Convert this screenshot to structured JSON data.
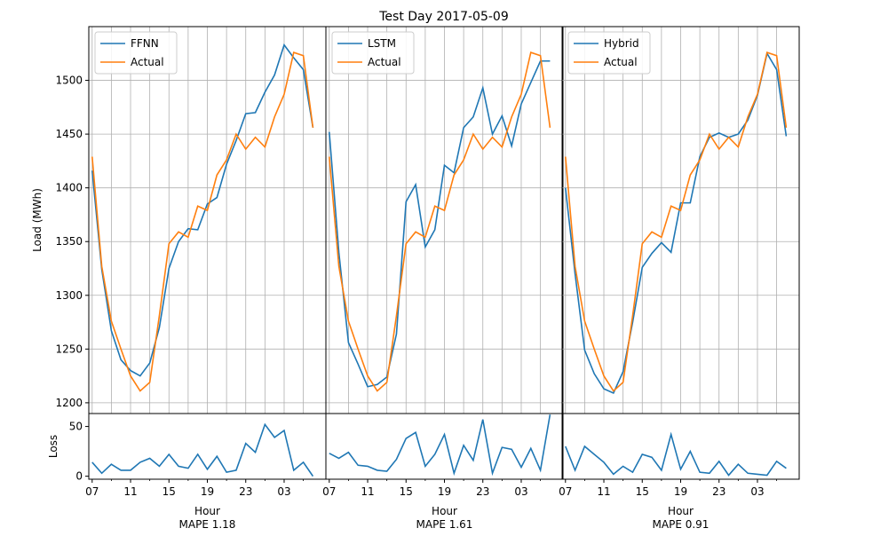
{
  "title": "Test Day 2017-05-09",
  "colors": {
    "model": "#1f77b4",
    "actual": "#ff7f0e",
    "grid": "#b0b0b0"
  },
  "ylabel_load": "Load (MWh)",
  "ylabel_loss": "Loss",
  "xlabel": "Hour",
  "x_tick_labels": [
    "07",
    "11",
    "15",
    "19",
    "23",
    "03"
  ],
  "chart_data": [
    {
      "type": "line",
      "legend": [
        "FFNN",
        "Actual"
      ],
      "mape_label": "MAPE 1.18",
      "x_hours": [
        7,
        8,
        9,
        10,
        11,
        12,
        13,
        14,
        15,
        16,
        17,
        18,
        19,
        20,
        21,
        22,
        23,
        24,
        25,
        26,
        27,
        28,
        29,
        30
      ],
      "series": [
        {
          "name": "FFNN",
          "values": [
            1416,
            1324,
            1267,
            1240,
            1230,
            1225,
            1237,
            1270,
            1325,
            1350,
            1362,
            1361,
            1385,
            1391,
            1422,
            1444,
            1469,
            1470,
            1489,
            1505,
            1533,
            1521,
            1510,
            1456
          ]
        },
        {
          "name": "Actual",
          "values": [
            1429,
            1327,
            1276,
            1250,
            1225,
            1211,
            1219,
            1281,
            1348,
            1359,
            1354,
            1383,
            1379,
            1412,
            1426,
            1450,
            1436,
            1447,
            1438,
            1466,
            1487,
            1526,
            1523,
            1456
          ]
        }
      ],
      "loss": [
        14,
        3,
        12,
        6,
        6,
        14,
        18,
        10,
        22,
        10,
        8,
        22,
        7,
        20,
        4,
        6,
        33,
        24,
        52,
        39,
        46,
        6,
        14,
        0
      ],
      "ylim": [
        1190,
        1550
      ],
      "loss_ylim": [
        -3,
        63
      ]
    },
    {
      "type": "line",
      "legend": [
        "LSTM",
        "Actual"
      ],
      "mape_label": "MAPE 1.61",
      "x_hours": [
        7,
        8,
        9,
        10,
        11,
        12,
        13,
        14,
        15,
        16,
        17,
        18,
        19,
        20,
        21,
        22,
        23,
        24,
        25,
        26,
        27,
        28,
        29,
        30
      ],
      "series": [
        {
          "name": "LSTM",
          "values": [
            1452,
            1340,
            1256,
            1236,
            1215,
            1217,
            1224,
            1264,
            1387,
            1403,
            1345,
            1361,
            1421,
            1414,
            1456,
            1466,
            1493,
            1450,
            1467,
            1439,
            1478,
            1498,
            1518,
            1518
          ]
        },
        {
          "name": "Actual",
          "values": [
            1429,
            1327,
            1276,
            1250,
            1225,
            1211,
            1219,
            1281,
            1348,
            1359,
            1354,
            1383,
            1379,
            1412,
            1426,
            1450,
            1436,
            1447,
            1438,
            1466,
            1487,
            1526,
            1523,
            1456
          ]
        }
      ],
      "loss": [
        23,
        18,
        24,
        11,
        10,
        6,
        5,
        17,
        38,
        44,
        10,
        22,
        42,
        3,
        31,
        16,
        57,
        3,
        29,
        27,
        9,
        28,
        6,
        62
      ],
      "ylim": [
        1190,
        1550
      ],
      "loss_ylim": [
        -3,
        63
      ]
    },
    {
      "type": "line",
      "legend": [
        "Hybrid",
        "Actual"
      ],
      "mape_label": "MAPE 0.91",
      "x_hours": [
        7,
        8,
        9,
        10,
        11,
        12,
        13,
        14,
        15,
        16,
        17,
        18,
        19,
        20,
        21,
        22,
        23,
        24,
        25,
        26,
        27,
        28,
        29,
        30
      ],
      "series": [
        {
          "name": "Hybrid",
          "values": [
            1400,
            1320,
            1249,
            1227,
            1213,
            1209,
            1229,
            1275,
            1326,
            1339,
            1349,
            1340,
            1386,
            1386,
            1429,
            1447,
            1451,
            1447,
            1450,
            1463,
            1486,
            1525,
            1510,
            1448
          ]
        },
        {
          "name": "Actual",
          "values": [
            1429,
            1327,
            1276,
            1250,
            1225,
            1211,
            1219,
            1281,
            1348,
            1359,
            1354,
            1383,
            1379,
            1412,
            1426,
            1450,
            1436,
            1447,
            1438,
            1466,
            1487,
            1526,
            1523,
            1456
          ]
        }
      ],
      "loss": [
        30,
        6,
        30,
        22,
        14,
        2,
        10,
        4,
        22,
        19,
        6,
        42,
        7,
        25,
        4,
        3,
        15,
        1,
        12,
        3,
        2,
        1,
        15,
        8
      ],
      "ylim": [
        1190,
        1550
      ],
      "loss_ylim": [
        -3,
        63
      ]
    }
  ],
  "y_ticks_load": [
    1200,
    1250,
    1300,
    1350,
    1400,
    1450,
    1500
  ],
  "y_ticks_loss": [
    0,
    50
  ]
}
